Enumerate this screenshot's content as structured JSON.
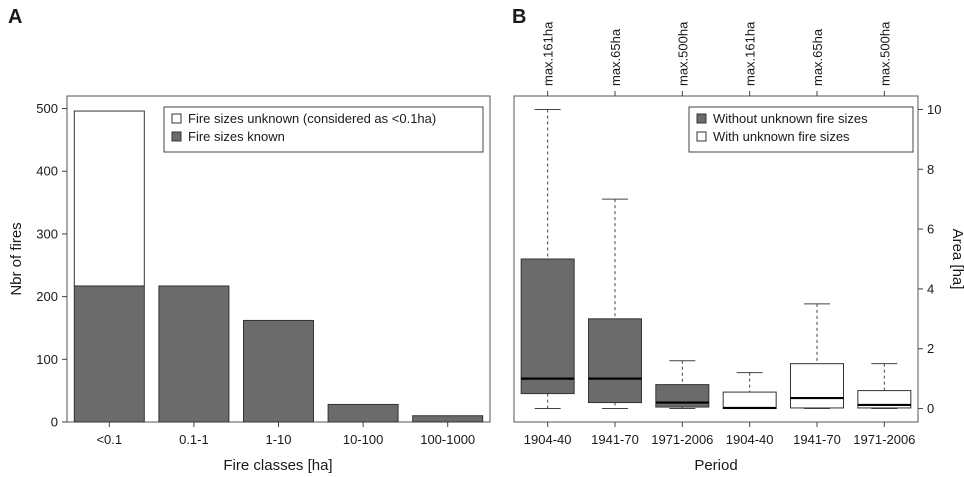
{
  "chart_data": [
    {
      "type": "bar",
      "panel_label": "A",
      "xlabel": "Fire classes [ha]",
      "ylabel": "Nbr of fires",
      "ylim": [
        0,
        520
      ],
      "yticks": [
        0,
        100,
        200,
        300,
        400,
        500
      ],
      "categories": [
        "<0.1",
        "0.1-1",
        "1-10",
        "10-100",
        "100-1000"
      ],
      "stacked": true,
      "series": [
        {
          "name": "Fire sizes known",
          "values": [
            217,
            217,
            162,
            28,
            10
          ],
          "color": "#6b6b6b"
        },
        {
          "name": "Fire sizes unknown (considered as <0.1ha)",
          "values": [
            279,
            0,
            0,
            0,
            0
          ],
          "color": "#ffffff"
        }
      ],
      "legend": {
        "position": "top-right",
        "entries": [
          "Fire sizes unknown (considered as <0.1ha)",
          "Fire sizes known"
        ]
      }
    },
    {
      "type": "box",
      "panel_label": "B",
      "xlabel": "Period",
      "ylabel": "Area [ha]",
      "yaxis_side": "right",
      "ylim": [
        -0.45,
        10.45
      ],
      "yticks": [
        0,
        2,
        4,
        6,
        8,
        10
      ],
      "categories": [
        "1904-40",
        "1941-70",
        "1971-2006",
        "1904-40",
        "1941-70",
        "1971-2006"
      ],
      "top_labels": [
        "max.161ha",
        "max.65ha",
        "max.500ha",
        "max.161ha",
        "max.65ha",
        "max.500ha"
      ],
      "boxes": [
        {
          "category": "1904-40",
          "group": "Without unknown fire sizes",
          "min": 0,
          "q1": 0.5,
          "median": 1.0,
          "q3": 5.0,
          "max": 10.0
        },
        {
          "category": "1941-70",
          "group": "Without unknown fire sizes",
          "min": 0,
          "q1": 0.2,
          "median": 1.0,
          "q3": 3.0,
          "max": 7.0
        },
        {
          "category": "1971-2006",
          "group": "Without unknown fire sizes",
          "min": 0,
          "q1": 0.05,
          "median": 0.2,
          "q3": 0.8,
          "max": 1.6
        },
        {
          "category": "1904-40",
          "group": "With unknown fire sizes",
          "min": 0,
          "q1": 0,
          "median": 0.02,
          "q3": 0.55,
          "max": 1.2
        },
        {
          "category": "1941-70",
          "group": "With unknown fire sizes",
          "min": 0,
          "q1": 0.02,
          "median": 0.35,
          "q3": 1.5,
          "max": 3.5
        },
        {
          "category": "1971-2006",
          "group": "With unknown fire sizes",
          "min": 0,
          "q1": 0.02,
          "median": 0.12,
          "q3": 0.6,
          "max": 1.5
        }
      ],
      "groups": [
        {
          "name": "Without unknown fire sizes",
          "color": "#6b6b6b"
        },
        {
          "name": "With unknown fire sizes",
          "color": "#ffffff"
        }
      ],
      "legend": {
        "position": "top-right",
        "entries": [
          "Without unknown fire sizes",
          "With unknown fire sizes"
        ]
      }
    }
  ]
}
